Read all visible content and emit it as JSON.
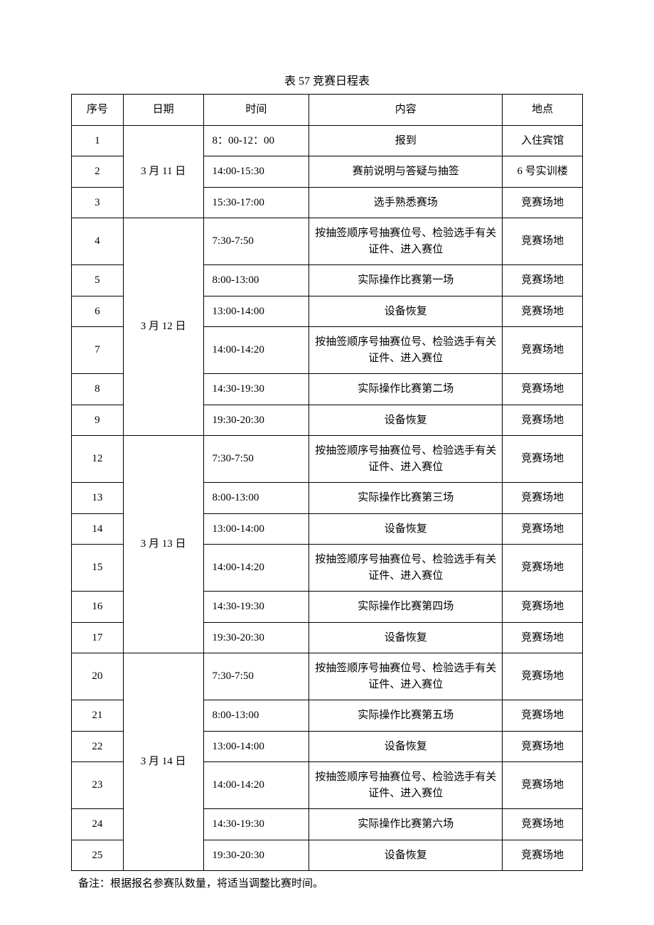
{
  "title": "表 57 竞赛日程表",
  "headers": {
    "seq": "序号",
    "date": "日期",
    "time": "时间",
    "content": "内容",
    "location": "地点"
  },
  "footnote": "备注：根据报名参赛队数量，将适当调整比赛时间。",
  "groups": [
    {
      "date": "3 月 11 日",
      "rows": [
        {
          "seq": "1",
          "time": "8：00-12：00",
          "content": "报到",
          "location": "入住宾馆"
        },
        {
          "seq": "2",
          "time": "14:00-15:30",
          "content": "赛前说明与答疑与抽签",
          "location": "6 号实训楼"
        },
        {
          "seq": "3",
          "time": "15:30-17:00",
          "content": "选手熟悉赛场",
          "location": "竞赛场地"
        }
      ]
    },
    {
      "date": "3 月 12 日",
      "rows": [
        {
          "seq": "4",
          "time": "7:30-7:50",
          "content": "按抽签顺序号抽赛位号、检验选手有关证件、进入赛位",
          "location": "竞赛场地"
        },
        {
          "seq": "5",
          "time": "8:00-13:00",
          "content": "实际操作比赛第一场",
          "location": "竞赛场地"
        },
        {
          "seq": "6",
          "time": "13:00-14:00",
          "content": "设备恢复",
          "location": "竞赛场地"
        },
        {
          "seq": "7",
          "time": "14:00-14:20",
          "content": "按抽签顺序号抽赛位号、检验选手有关证件、进入赛位",
          "location": "竞赛场地"
        },
        {
          "seq": "8",
          "time": "14:30-19:30",
          "content": "实际操作比赛第二场",
          "location": "竞赛场地"
        },
        {
          "seq": "9",
          "time": "19:30-20:30",
          "content": "设备恢复",
          "location": "竞赛场地"
        }
      ]
    },
    {
      "date": "3 月 13 日",
      "rows": [
        {
          "seq": "12",
          "time": "7:30-7:50",
          "content": "按抽签顺序号抽赛位号、检验选手有关证件、进入赛位",
          "location": "竞赛场地"
        },
        {
          "seq": "13",
          "time": "8:00-13:00",
          "content": "实际操作比赛第三场",
          "location": "竞赛场地"
        },
        {
          "seq": "14",
          "time": "13:00-14:00",
          "content": "设备恢复",
          "location": "竞赛场地"
        },
        {
          "seq": "15",
          "time": "14:00-14:20",
          "content": "按抽签顺序号抽赛位号、检验选手有关证件、进入赛位",
          "location": "竞赛场地"
        },
        {
          "seq": "16",
          "time": "14:30-19:30",
          "content": "实际操作比赛第四场",
          "location": "竞赛场地"
        },
        {
          "seq": "17",
          "time": "19:30-20:30",
          "content": "设备恢复",
          "location": "竞赛场地"
        }
      ]
    },
    {
      "date": "3 月 14 日",
      "rows": [
        {
          "seq": "20",
          "time": "7:30-7:50",
          "content": "按抽签顺序号抽赛位号、检验选手有关证件、进入赛位",
          "location": "竞赛场地"
        },
        {
          "seq": "21",
          "time": "8:00-13:00",
          "content": "实际操作比赛第五场",
          "location": "竞赛场地"
        },
        {
          "seq": "22",
          "time": "13:00-14:00",
          "content": "设备恢复",
          "location": "竞赛场地"
        },
        {
          "seq": "23",
          "time": "14:00-14:20",
          "content": "按抽签顺序号抽赛位号、检验选手有关证件、进入赛位",
          "location": "竞赛场地"
        },
        {
          "seq": "24",
          "time": "14:30-19:30",
          "content": "实际操作比赛第六场",
          "location": "竞赛场地"
        },
        {
          "seq": "25",
          "time": "19:30-20:30",
          "content": "设备恢复",
          "location": "竞赛场地"
        }
      ]
    }
  ]
}
